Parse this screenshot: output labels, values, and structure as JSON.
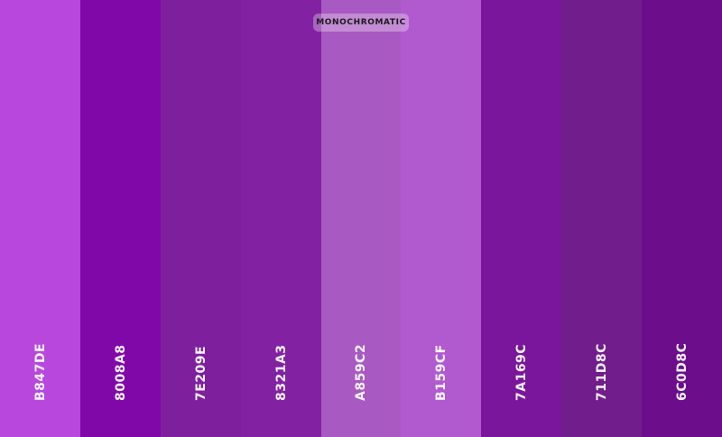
{
  "badge": {
    "label": "MONOCHROMATIC"
  },
  "swatches": [
    {
      "hex": "B847DE",
      "color": "#B847DE"
    },
    {
      "hex": "8008A8",
      "color": "#8008A8"
    },
    {
      "hex": "7E209E",
      "color": "#7E209E"
    },
    {
      "hex": "8321A3",
      "color": "#8321A3"
    },
    {
      "hex": "A859C2",
      "color": "#A859C2"
    },
    {
      "hex": "B159CF",
      "color": "#B159CF"
    },
    {
      "hex": "7A169C",
      "color": "#7A169C"
    },
    {
      "hex": "711D8C",
      "color": "#711D8C"
    },
    {
      "hex": "6C0D8C",
      "color": "#6C0D8C"
    }
  ]
}
